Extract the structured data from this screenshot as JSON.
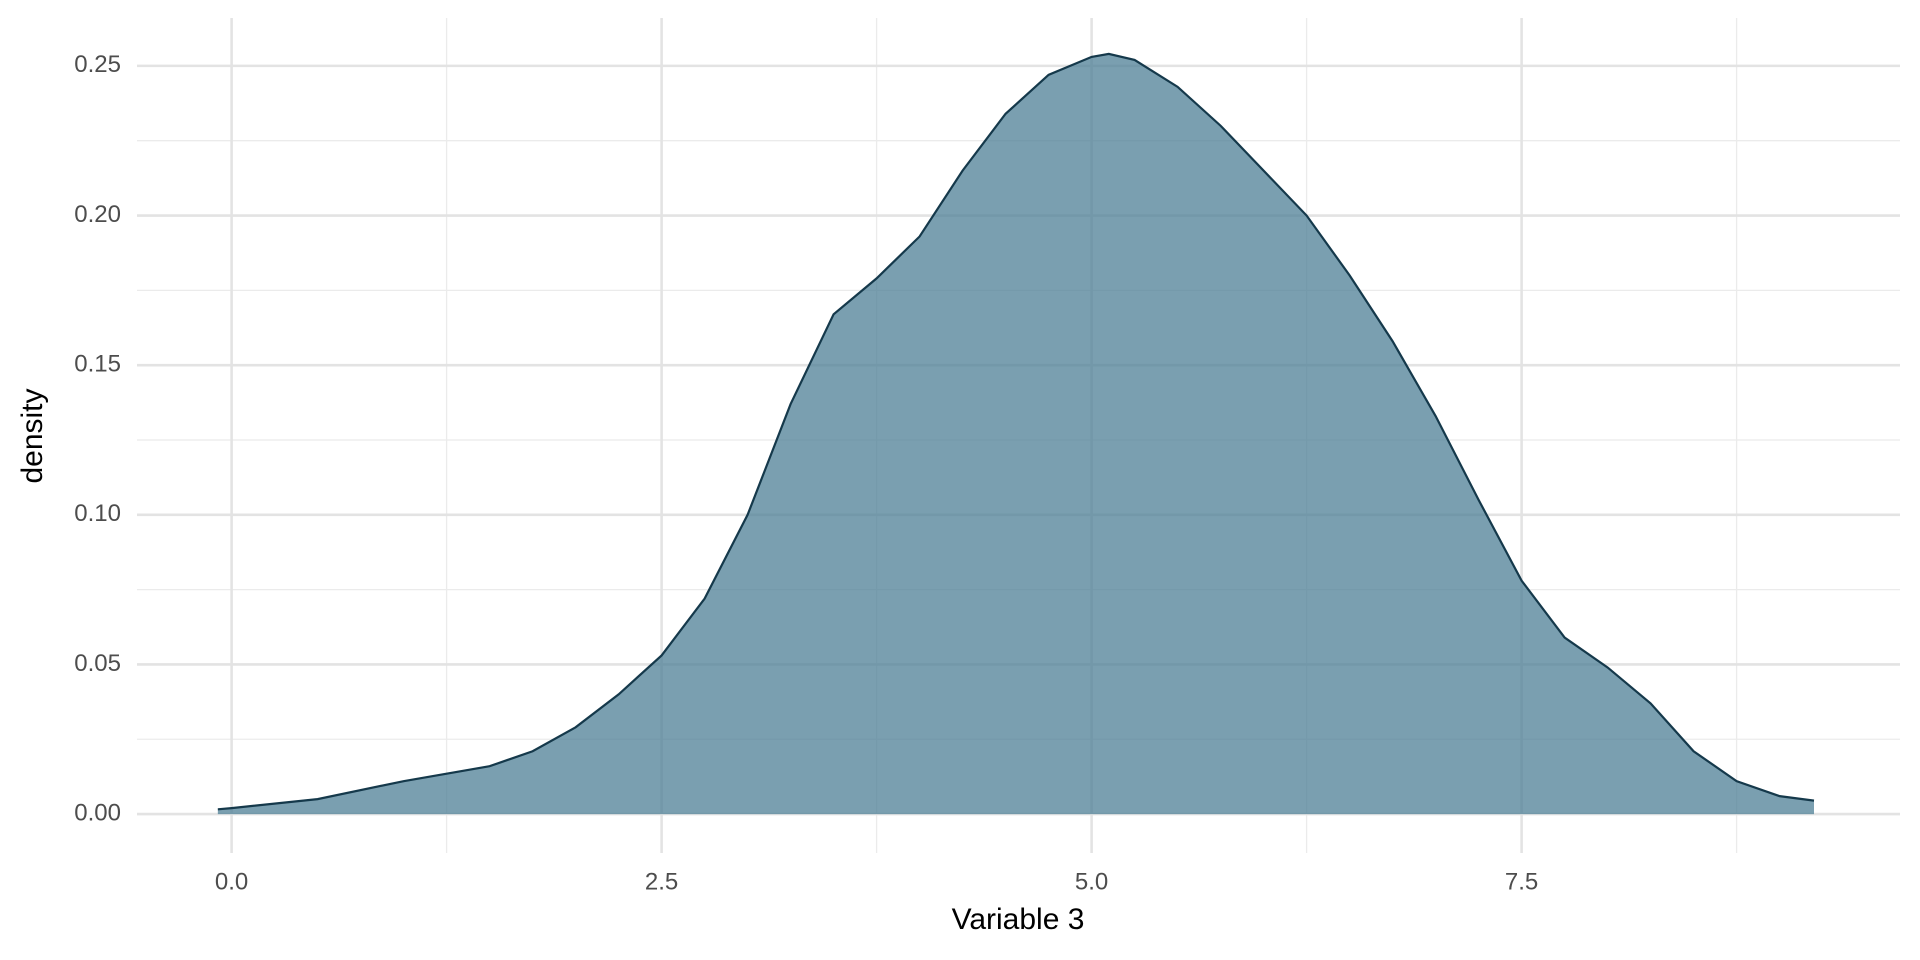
{
  "chart_data": {
    "type": "area",
    "x_label": "Variable 3",
    "y_label": "density",
    "x": [
      -0.08,
      0,
      0.5,
      1.0,
      1.5,
      1.75,
      2.0,
      2.25,
      2.5,
      2.75,
      3.0,
      3.25,
      3.5,
      3.75,
      4.0,
      4.25,
      4.5,
      4.75,
      5.0,
      5.1,
      5.25,
      5.5,
      5.75,
      6.0,
      6.25,
      6.5,
      6.75,
      7.0,
      7.25,
      7.5,
      7.75,
      8.0,
      8.25,
      8.5,
      8.75,
      9.0,
      9.2
    ],
    "y": [
      0.0016,
      0.002,
      0.005,
      0.011,
      0.016,
      0.021,
      0.029,
      0.04,
      0.053,
      0.072,
      0.1,
      0.137,
      0.167,
      0.179,
      0.193,
      0.215,
      0.234,
      0.247,
      0.253,
      0.254,
      0.252,
      0.243,
      0.23,
      0.215,
      0.2,
      0.18,
      0.158,
      0.133,
      0.105,
      0.078,
      0.059,
      0.049,
      0.037,
      0.021,
      0.011,
      0.006,
      0.0045
    ],
    "fill_color": "#4d7f96",
    "line_color": "#15394b",
    "xlim": [
      -0.55,
      9.7
    ],
    "ylim": [
      -0.013,
      0.266
    ],
    "xticks": [
      {
        "value": 0,
        "label": "0.0"
      },
      2.5,
      {
        "value": 5,
        "label": "5.0"
      },
      7.5
    ],
    "yticks": [
      {
        "value": 0,
        "label": "0.00"
      },
      0.05,
      {
        "value": 0.1,
        "label": "0.10"
      },
      0.15,
      {
        "value": 0.2,
        "label": "0.20"
      },
      0.25
    ],
    "minor_xticks": [
      1.25,
      3.75,
      6.25,
      8.75
    ],
    "minor_yticks": [
      0.025,
      0.075,
      0.125,
      0.175,
      0.225
    ],
    "grid": true
  }
}
